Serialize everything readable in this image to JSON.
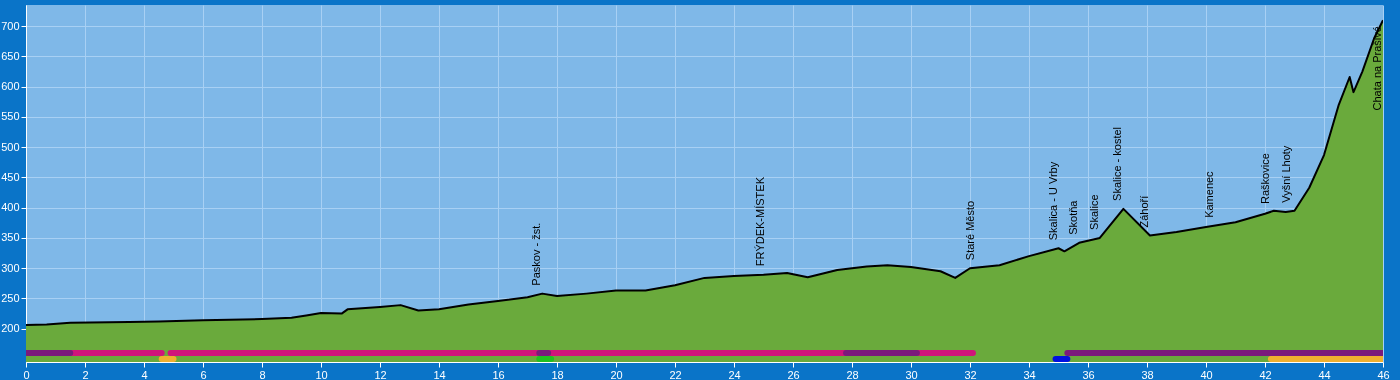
{
  "chart_data": {
    "type": "area",
    "x": [
      0,
      0.7,
      1.5,
      3.5,
      4.5,
      6,
      8,
      9,
      9.5,
      10,
      10.7,
      10.9,
      12,
      12.7,
      13.3,
      14,
      15,
      16,
      17,
      17.5,
      18,
      19,
      20,
      21,
      22,
      23,
      24,
      25,
      25.8,
      26.5,
      27.5,
      28.5,
      29.2,
      30,
      31,
      31.5,
      32,
      33,
      34,
      35,
      35.2,
      35.7,
      36.4,
      37.2,
      38.1,
      39,
      40,
      41,
      42,
      42.3,
      42.7,
      43,
      43.5,
      44,
      44.5,
      44.87,
      45,
      45.3,
      45.7,
      46
    ],
    "series": [
      {
        "color": "#6aaa3c",
        "values": [
          206,
          207,
          210,
          211,
          212,
          214,
          216,
          218,
          222,
          226,
          225,
          232,
          236,
          239,
          230,
          232,
          240,
          246,
          252,
          258,
          254,
          258,
          263,
          263,
          272,
          284,
          287,
          289,
          292,
          285,
          297,
          303,
          305,
          302,
          295,
          284,
          300,
          305,
          320,
          333,
          328,
          342,
          350,
          398,
          354,
          360,
          368,
          376,
          390,
          395,
          393,
          395,
          433,
          487,
          570,
          616,
          591,
          625,
          680,
          710
        ]
      },
      {
        "type": "line",
        "color": "#d0157a",
        "x": [
          1.5,
          4.6,
          4.75,
          4.9,
          17.4,
          17.55,
          17.7,
          27.8,
          29,
          30.2,
          32.1
        ],
        "values": [
          160,
          160,
          null,
          160,
          160,
          null,
          160,
          160,
          null,
          160,
          160
        ]
      },
      {
        "type": "line",
        "color": "#7b1a7b",
        "x": [
          0,
          1.5,
          9,
          17.4,
          17.7,
          22,
          27.8,
          30.2,
          33,
          35.3,
          46
        ],
        "values": [
          160,
          160,
          null,
          160,
          160,
          null,
          160,
          160,
          null,
          160,
          160
        ]
      },
      {
        "type": "line",
        "color": "#f0b030",
        "x": [
          4.6,
          5.0,
          20,
          42.2,
          46
        ],
        "values": [
          150,
          150,
          null,
          150,
          150
        ]
      },
      {
        "type": "line",
        "color": "#20c020",
        "x": [
          17.4,
          17.8
        ],
        "values": [
          150,
          150
        ]
      },
      {
        "type": "line",
        "color": "#0010e0",
        "x": [
          34.9,
          35.3
        ],
        "values": [
          150,
          150
        ]
      }
    ],
    "xlim": [
      0,
      46
    ],
    "ylim": [
      145,
      735
    ],
    "xticks": [
      0,
      2,
      4,
      6,
      8,
      10,
      12,
      14,
      16,
      18,
      20,
      22,
      24,
      26,
      28,
      30,
      32,
      34,
      36,
      38,
      40,
      42,
      44,
      46
    ],
    "yticks": [
      200,
      250,
      300,
      350,
      400,
      450,
      500,
      550,
      600,
      650,
      700
    ],
    "grid": true,
    "annotations": [
      {
        "text": "Paskov - žst.",
        "x": 17.5,
        "y": 258
      },
      {
        "text": "FRÝDEK-MÍSTEK",
        "x": 25.1,
        "y": 290
      },
      {
        "text": "Staré Město",
        "x": 32.2,
        "y": 300
      },
      {
        "text": "Skalica - U Vrby",
        "x": 35,
        "y": 333
      },
      {
        "text": "Skotňa",
        "x": 35.7,
        "y": 342
      },
      {
        "text": "Skalice",
        "x": 36.4,
        "y": 350
      },
      {
        "text": "Skalice - kostel",
        "x": 37.2,
        "y": 398
      },
      {
        "text": "Záhoří",
        "x": 38.1,
        "y": 354
      },
      {
        "text": "Kamenec",
        "x": 40.3,
        "y": 370
      },
      {
        "text": "Raškovice",
        "x": 42.2,
        "y": 393
      },
      {
        "text": "Vyšní Lhoty",
        "x": 42.9,
        "y": 395
      },
      {
        "text": "Chata na Prašivé",
        "x": 46,
        "y": 710
      }
    ]
  }
}
